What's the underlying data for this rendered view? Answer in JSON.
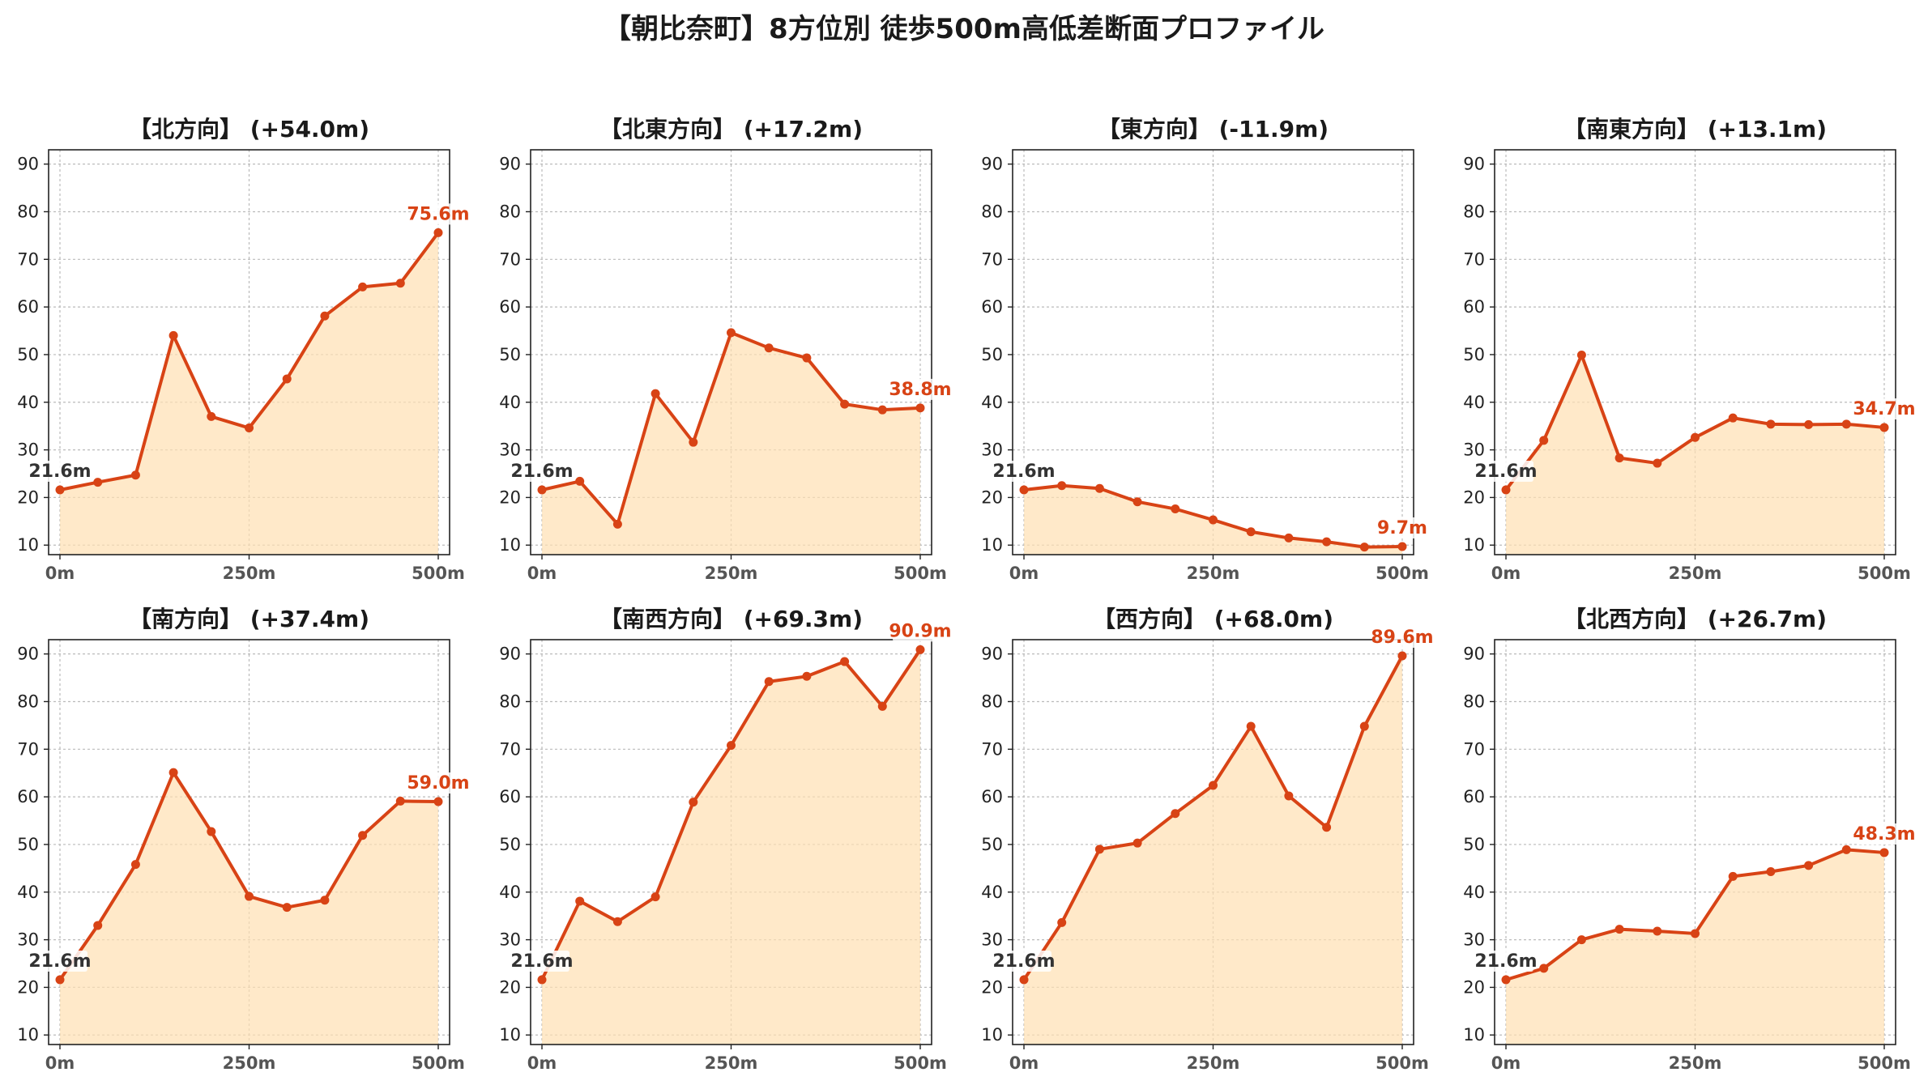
{
  "suptitle": "【朝比奈町】8方位別 徒歩500m高低差断面プロファイル",
  "colors": {
    "line": "#d84315",
    "fill": "#ffe0b2",
    "start_label": "#333333",
    "end_label": "#d84315",
    "grid": "#bbbbbb",
    "axis_text": "#555555"
  },
  "chart_data": [
    {
      "type": "area",
      "title": "【北方向】 (+54.0m)",
      "x": [
        0,
        50,
        100,
        150,
        200,
        250,
        300,
        350,
        400,
        450,
        500
      ],
      "values": [
        21.6,
        23.2,
        24.7,
        54.0,
        37.0,
        34.6,
        44.9,
        58.1,
        64.2,
        65.0,
        75.6
      ],
      "start_label": "21.6m",
      "end_label": "75.6m",
      "xticks": [
        "0m",
        "250m",
        "500m"
      ],
      "yticks": [
        10,
        20,
        30,
        40,
        50,
        60,
        70,
        80,
        90
      ],
      "xlim": [
        -15,
        515
      ],
      "ylim": [
        8,
        93
      ],
      "grid": true
    },
    {
      "type": "area",
      "title": "【北東方向】 (+17.2m)",
      "x": [
        0,
        50,
        100,
        150,
        200,
        250,
        300,
        350,
        400,
        450,
        500
      ],
      "values": [
        21.6,
        23.4,
        14.4,
        41.8,
        31.6,
        54.6,
        51.4,
        49.3,
        39.6,
        38.4,
        38.8
      ],
      "start_label": "21.6m",
      "end_label": "38.8m",
      "xticks": [
        "0m",
        "250m",
        "500m"
      ],
      "yticks": [
        10,
        20,
        30,
        40,
        50,
        60,
        70,
        80,
        90
      ],
      "xlim": [
        -15,
        515
      ],
      "ylim": [
        8,
        93
      ],
      "grid": true
    },
    {
      "type": "area",
      "title": "【東方向】 (-11.9m)",
      "x": [
        0,
        50,
        100,
        150,
        200,
        250,
        300,
        350,
        400,
        450,
        500
      ],
      "values": [
        21.6,
        22.5,
        21.9,
        19.1,
        17.6,
        15.3,
        12.8,
        11.5,
        10.7,
        9.6,
        9.7
      ],
      "start_label": "21.6m",
      "end_label": "9.7m",
      "xticks": [
        "0m",
        "250m",
        "500m"
      ],
      "yticks": [
        10,
        20,
        30,
        40,
        50,
        60,
        70,
        80,
        90
      ],
      "xlim": [
        -15,
        515
      ],
      "ylim": [
        8,
        93
      ],
      "grid": true
    },
    {
      "type": "area",
      "title": "【南東方向】 (+13.1m)",
      "x": [
        0,
        50,
        100,
        150,
        200,
        250,
        300,
        350,
        400,
        450,
        500
      ],
      "values": [
        21.6,
        32.0,
        49.9,
        28.3,
        27.2,
        32.6,
        36.7,
        35.4,
        35.3,
        35.4,
        34.7
      ],
      "start_label": "21.6m",
      "end_label": "34.7m",
      "xticks": [
        "0m",
        "250m",
        "500m"
      ],
      "yticks": [
        10,
        20,
        30,
        40,
        50,
        60,
        70,
        80,
        90
      ],
      "xlim": [
        -15,
        515
      ],
      "ylim": [
        8,
        93
      ],
      "grid": true
    },
    {
      "type": "area",
      "title": "【南方向】 (+37.4m)",
      "x": [
        0,
        50,
        100,
        150,
        200,
        250,
        300,
        350,
        400,
        450,
        500
      ],
      "values": [
        21.6,
        33.0,
        45.8,
        65.1,
        52.7,
        39.1,
        36.8,
        38.3,
        51.9,
        59.1,
        59.0
      ],
      "start_label": "21.6m",
      "end_label": "59.0m",
      "xticks": [
        "0m",
        "250m",
        "500m"
      ],
      "yticks": [
        10,
        20,
        30,
        40,
        50,
        60,
        70,
        80,
        90
      ],
      "xlim": [
        -15,
        515
      ],
      "ylim": [
        8,
        93
      ],
      "grid": true
    },
    {
      "type": "area",
      "title": "【南西方向】 (+69.3m)",
      "x": [
        0,
        50,
        100,
        150,
        200,
        250,
        300,
        350,
        400,
        450,
        500
      ],
      "values": [
        21.6,
        38.1,
        33.8,
        39.0,
        58.9,
        70.8,
        84.2,
        85.3,
        88.4,
        79.0,
        90.9
      ],
      "start_label": "21.6m",
      "end_label": "90.9m",
      "xticks": [
        "0m",
        "250m",
        "500m"
      ],
      "yticks": [
        10,
        20,
        30,
        40,
        50,
        60,
        70,
        80,
        90
      ],
      "xlim": [
        -15,
        515
      ],
      "ylim": [
        8,
        93
      ],
      "grid": true
    },
    {
      "type": "area",
      "title": "【西方向】 (+68.0m)",
      "x": [
        0,
        50,
        100,
        150,
        200,
        250,
        300,
        350,
        400,
        450,
        500
      ],
      "values": [
        21.6,
        33.6,
        49.0,
        50.3,
        56.5,
        62.4,
        74.8,
        60.2,
        53.6,
        74.8,
        89.6
      ],
      "start_label": "21.6m",
      "end_label": "89.6m",
      "xticks": [
        "0m",
        "250m",
        "500m"
      ],
      "yticks": [
        10,
        20,
        30,
        40,
        50,
        60,
        70,
        80,
        90
      ],
      "xlim": [
        -15,
        515
      ],
      "ylim": [
        8,
        93
      ],
      "grid": true
    },
    {
      "type": "area",
      "title": "【北西方向】 (+26.7m)",
      "x": [
        0,
        50,
        100,
        150,
        200,
        250,
        300,
        350,
        400,
        450,
        500
      ],
      "values": [
        21.6,
        24.0,
        30.0,
        32.2,
        31.8,
        31.3,
        43.3,
        44.3,
        45.6,
        48.9,
        48.3
      ],
      "start_label": "21.6m",
      "end_label": "48.3m",
      "xticks": [
        "0m",
        "250m",
        "500m"
      ],
      "yticks": [
        10,
        20,
        30,
        40,
        50,
        60,
        70,
        80,
        90
      ],
      "xlim": [
        -15,
        515
      ],
      "ylim": [
        8,
        93
      ],
      "grid": true
    }
  ]
}
